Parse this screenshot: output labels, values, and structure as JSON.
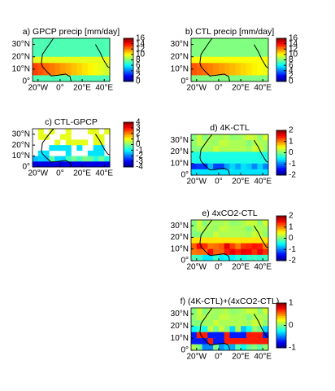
{
  "chart_data": [
    {
      "type": "heatmap",
      "title": "a) GPCP precip [mm/day]",
      "xlim": [
        -25,
        45
      ],
      "ylim": [
        0,
        35
      ],
      "xticks": [
        {
          "value": -20,
          "label": "20°W"
        },
        {
          "value": 0,
          "label": "0°"
        },
        {
          "value": 20,
          "label": "20°E"
        },
        {
          "value": 40,
          "label": "40°E"
        }
      ],
      "yticks": [
        {
          "value": 0,
          "label": "0°"
        },
        {
          "value": 10,
          "label": "10°N"
        },
        {
          "value": 20,
          "label": "20°N"
        },
        {
          "value": 30,
          "label": "30°N"
        }
      ],
      "colorbar_lim": [
        0,
        16
      ],
      "colorbar_ticks": [
        0,
        2,
        4,
        6,
        8,
        10,
        12,
        14,
        16
      ]
    },
    {
      "type": "heatmap",
      "title": "b) CTL precip [mm/day]",
      "xlim": [
        -25,
        45
      ],
      "ylim": [
        0,
        35
      ],
      "xticks": [
        {
          "value": -20,
          "label": "20°W"
        },
        {
          "value": 0,
          "label": "0°"
        },
        {
          "value": 20,
          "label": "20°E"
        },
        {
          "value": 40,
          "label": "40°E"
        }
      ],
      "yticks": [
        {
          "value": 0,
          "label": "0°"
        },
        {
          "value": 10,
          "label": "10°N"
        },
        {
          "value": 20,
          "label": "20°N"
        },
        {
          "value": 30,
          "label": "30°N"
        }
      ],
      "colorbar_lim": [
        0,
        16
      ],
      "colorbar_ticks": [
        0,
        2,
        4,
        6,
        8,
        10,
        12,
        14,
        16
      ]
    },
    {
      "type": "heatmap",
      "title": "c) CTL-GPCP",
      "xlim": [
        -25,
        45
      ],
      "ylim": [
        0,
        35
      ],
      "xticks": [
        {
          "value": -20,
          "label": "20°W"
        },
        {
          "value": 0,
          "label": "0°"
        },
        {
          "value": 20,
          "label": "20°E"
        },
        {
          "value": 40,
          "label": "40°E"
        }
      ],
      "yticks": [
        {
          "value": 0,
          "label": "0°"
        },
        {
          "value": 10,
          "label": "10°N"
        },
        {
          "value": 20,
          "label": "20°N"
        },
        {
          "value": 30,
          "label": "30°N"
        }
      ],
      "colorbar_lim": [
        -4,
        4
      ],
      "colorbar_ticks": [
        -4,
        -3,
        -2,
        -1,
        0,
        1,
        2,
        3,
        4
      ]
    },
    {
      "type": "heatmap",
      "title": "d) 4K-CTL",
      "xlim": [
        -25,
        45
      ],
      "ylim": [
        0,
        35
      ],
      "xticks": [
        {
          "value": -20,
          "label": "20°W"
        },
        {
          "value": 0,
          "label": "0°"
        },
        {
          "value": 20,
          "label": "20°E"
        },
        {
          "value": 40,
          "label": "40°E"
        }
      ],
      "yticks": [
        {
          "value": 0,
          "label": "0°"
        },
        {
          "value": 10,
          "label": "10°N"
        },
        {
          "value": 20,
          "label": "20°N"
        },
        {
          "value": 30,
          "label": "30°N"
        }
      ],
      "colorbar_lim": [
        -2,
        2
      ],
      "colorbar_ticks": [
        -2,
        -1,
        0,
        1,
        2
      ]
    },
    {
      "type": "heatmap",
      "title": "e) 4xCO2-CTL",
      "xlim": [
        -25,
        45
      ],
      "ylim": [
        0,
        35
      ],
      "xticks": [
        {
          "value": -20,
          "label": "20°W"
        },
        {
          "value": 0,
          "label": "0°"
        },
        {
          "value": 20,
          "label": "20°E"
        },
        {
          "value": 40,
          "label": "40°E"
        }
      ],
      "yticks": [
        {
          "value": 0,
          "label": "0°"
        },
        {
          "value": 10,
          "label": "10°N"
        },
        {
          "value": 20,
          "label": "20°N"
        },
        {
          "value": 30,
          "label": "30°N"
        }
      ],
      "colorbar_lim": [
        -2,
        2
      ],
      "colorbar_ticks": [
        -2,
        -1,
        0,
        1,
        2
      ]
    },
    {
      "type": "heatmap",
      "title": "f) (4K-CTL)+(4xCO2-CTL)",
      "xlim": [
        -25,
        45
      ],
      "ylim": [
        0,
        35
      ],
      "xticks": [
        {
          "value": -20,
          "label": "20°W"
        },
        {
          "value": 0,
          "label": "0°"
        },
        {
          "value": 20,
          "label": "20°E"
        },
        {
          "value": 40,
          "label": "40°E"
        }
      ],
      "yticks": [
        {
          "value": 0,
          "label": "0°"
        },
        {
          "value": 10,
          "label": "10°N"
        },
        {
          "value": 20,
          "label": "20°N"
        },
        {
          "value": 30,
          "label": "30°N"
        }
      ],
      "colorbar_lim": [
        -1,
        1
      ],
      "colorbar_ticks": [
        -1,
        0,
        1
      ]
    }
  ]
}
